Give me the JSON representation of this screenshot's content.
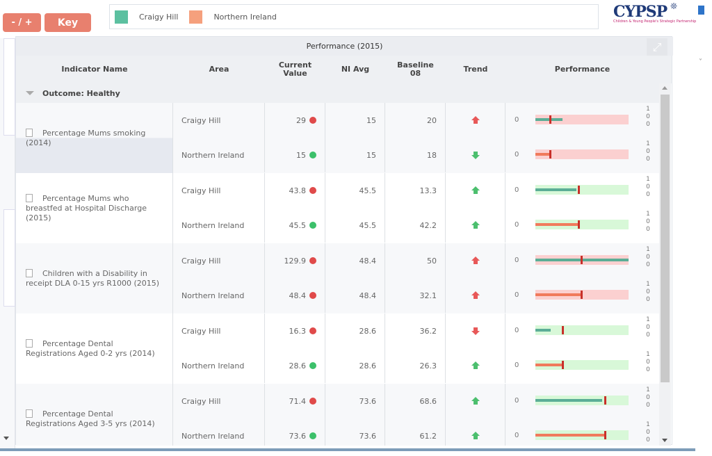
{
  "toolbar": {
    "zoom_label": "- / +",
    "key_label": "Key"
  },
  "legend": {
    "items": [
      {
        "label": "Craigy Hill",
        "color": "#5cc0a0"
      },
      {
        "label": "Northern Ireland",
        "color": "#f5a07d"
      }
    ]
  },
  "logo": {
    "title": "CYPSP",
    "subtitle": "Children & Young People's Strategic Partnership"
  },
  "panel": {
    "title": "Performance (2015)",
    "columns": {
      "indicator": "Indicator Name",
      "area": "Area",
      "current": "Current Value",
      "ni_avg": "NI Avg",
      "baseline": "Baseline 08",
      "trend": "Trend",
      "performance": "Performance"
    },
    "group_label": "Outcome: Healthy",
    "perf_min": "0",
    "perf_max": "1\n0\n0"
  },
  "colors": {
    "red": "#e04a4a",
    "green": "#3cc06a",
    "teal_bar": "#5bae96",
    "orange_bar": "#f07a5c",
    "bg_red": "#fbd0d0",
    "bg_green": "#d8f8d8",
    "marker_red": "#c8302a",
    "trend_red": "#e85858",
    "trend_green": "#4cbf6e"
  },
  "indicators": [
    {
      "name": "Percentage Mums smoking (2014)",
      "rows": [
        {
          "area": "Craigy Hill",
          "current": "29",
          "status": "red",
          "ni_avg": "15",
          "baseline": "20",
          "trend": "up",
          "trend_color": "red",
          "perf_bg": "red",
          "value_pct": 29,
          "marker_pct": 15,
          "bar_color": "teal"
        },
        {
          "area": "Northern Ireland",
          "current": "15",
          "status": "green",
          "ni_avg": "15",
          "baseline": "18",
          "trend": "down",
          "trend_color": "green",
          "perf_bg": "red",
          "value_pct": 15,
          "marker_pct": 15,
          "bar_color": "orange"
        }
      ]
    },
    {
      "name": "Percentage Mums who breastfed at Hospital Discharge (2015)",
      "rows": [
        {
          "area": "Craigy Hill",
          "current": "43.8",
          "status": "red",
          "ni_avg": "45.5",
          "baseline": "13.3",
          "trend": "up",
          "trend_color": "green",
          "perf_bg": "green",
          "value_pct": 43.8,
          "marker_pct": 45.5,
          "bar_color": "teal"
        },
        {
          "area": "Northern Ireland",
          "current": "45.5",
          "status": "green",
          "ni_avg": "45.5",
          "baseline": "42.2",
          "trend": "up",
          "trend_color": "green",
          "perf_bg": "green",
          "value_pct": 45.5,
          "marker_pct": 45.5,
          "bar_color": "orange"
        }
      ]
    },
    {
      "name": "Children with a Disability in receipt DLA 0-15 yrs R1000 (2015)",
      "rows": [
        {
          "area": "Craigy Hill",
          "current": "129.9",
          "status": "red",
          "ni_avg": "48.4",
          "baseline": "50",
          "trend": "up",
          "trend_color": "red",
          "perf_bg": "red",
          "value_pct": 100,
          "marker_pct": 48.4,
          "bar_color": "teal"
        },
        {
          "area": "Northern Ireland",
          "current": "48.4",
          "status": "red",
          "ni_avg": "48.4",
          "baseline": "32.1",
          "trend": "up",
          "trend_color": "red",
          "perf_bg": "red",
          "value_pct": 48.4,
          "marker_pct": 48.4,
          "bar_color": "orange"
        }
      ]
    },
    {
      "name": "Percentage Dental Registrations Aged 0-2 yrs (2014)",
      "rows": [
        {
          "area": "Craigy Hill",
          "current": "16.3",
          "status": "red",
          "ni_avg": "28.6",
          "baseline": "36.2",
          "trend": "down",
          "trend_color": "red",
          "perf_bg": "green",
          "value_pct": 16.3,
          "marker_pct": 28.6,
          "bar_color": "teal"
        },
        {
          "area": "Northern Ireland",
          "current": "28.6",
          "status": "green",
          "ni_avg": "28.6",
          "baseline": "26.3",
          "trend": "up",
          "trend_color": "green",
          "perf_bg": "green",
          "value_pct": 28.6,
          "marker_pct": 28.6,
          "bar_color": "orange"
        }
      ]
    },
    {
      "name": "Percentage Dental Registrations Aged 3-5 yrs (2014)",
      "rows": [
        {
          "area": "Craigy Hill",
          "current": "71.4",
          "status": "red",
          "ni_avg": "73.6",
          "baseline": "68.6",
          "trend": "up",
          "trend_color": "green",
          "perf_bg": "green",
          "value_pct": 71.4,
          "marker_pct": 73.6,
          "bar_color": "teal"
        },
        {
          "area": "Northern Ireland",
          "current": "73.6",
          "status": "green",
          "ni_avg": "73.6",
          "baseline": "61.2",
          "trend": "up",
          "trend_color": "green",
          "perf_bg": "green",
          "value_pct": 73.6,
          "marker_pct": 73.6,
          "bar_color": "orange"
        }
      ]
    }
  ]
}
